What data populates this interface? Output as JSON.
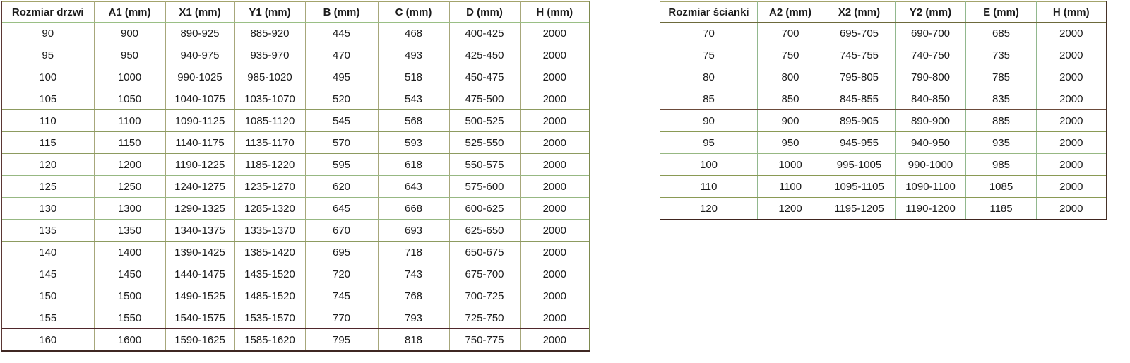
{
  "theme": {
    "border_olive": "#a7a77b",
    "border_green": "#92b88e",
    "border_sage": "#9abf85",
    "border_maroon": "#5c3136",
    "border_dark_bottom": "#3f2723",
    "text_color": "#1b1b1b",
    "background": "#ffffff"
  },
  "door_table": {
    "name": "door-size-table",
    "headers": [
      "Rozmiar drzwi",
      "A1 (mm)",
      "X1 (mm)",
      "Y1 (mm)",
      "B (mm)",
      "C (mm)",
      "D (mm)",
      "H (mm)"
    ],
    "rows": [
      [
        "90",
        "900",
        "890-925",
        "885-920",
        "445",
        "468",
        "400-425",
        "2000"
      ],
      [
        "95",
        "950",
        "940-975",
        "935-970",
        "470",
        "493",
        "425-450",
        "2000"
      ],
      [
        "100",
        "1000",
        "990-1025",
        "985-1020",
        "495",
        "518",
        "450-475",
        "2000"
      ],
      [
        "105",
        "1050",
        "1040-1075",
        "1035-1070",
        "520",
        "543",
        "475-500",
        "2000"
      ],
      [
        "110",
        "1100",
        "1090-1125",
        "1085-1120",
        "545",
        "568",
        "500-525",
        "2000"
      ],
      [
        "115",
        "1150",
        "1140-1175",
        "1135-1170",
        "570",
        "593",
        "525-550",
        "2000"
      ],
      [
        "120",
        "1200",
        "1190-1225",
        "1185-1220",
        "595",
        "618",
        "550-575",
        "2000"
      ],
      [
        "125",
        "1250",
        "1240-1275",
        "1235-1270",
        "620",
        "643",
        "575-600",
        "2000"
      ],
      [
        "130",
        "1300",
        "1290-1325",
        "1285-1320",
        "645",
        "668",
        "600-625",
        "2000"
      ],
      [
        "135",
        "1350",
        "1340-1375",
        "1335-1370",
        "670",
        "693",
        "625-650",
        "2000"
      ],
      [
        "140",
        "1400",
        "1390-1425",
        "1385-1420",
        "695",
        "718",
        "650-675",
        "2000"
      ],
      [
        "145",
        "1450",
        "1440-1475",
        "1435-1520",
        "720",
        "743",
        "675-700",
        "2000"
      ],
      [
        "150",
        "1500",
        "1490-1525",
        "1485-1520",
        "745",
        "768",
        "700-725",
        "2000"
      ],
      [
        "155",
        "1550",
        "1540-1575",
        "1535-1570",
        "770",
        "793",
        "725-750",
        "2000"
      ],
      [
        "160",
        "1600",
        "1590-1625",
        "1585-1620",
        "795",
        "818",
        "750-775",
        "2000"
      ]
    ]
  },
  "wall_table": {
    "name": "wall-panel-size-table",
    "headers": [
      "Rozmiar ścianki",
      "A2 (mm)",
      "X2 (mm)",
      "Y2 (mm)",
      "E (mm)",
      "H (mm)"
    ],
    "rows": [
      [
        "70",
        "700",
        "695-705",
        "690-700",
        "685",
        "2000"
      ],
      [
        "75",
        "750",
        "745-755",
        "740-750",
        "735",
        "2000"
      ],
      [
        "80",
        "800",
        "795-805",
        "790-800",
        "785",
        "2000"
      ],
      [
        "85",
        "850",
        "845-855",
        "840-850",
        "835",
        "2000"
      ],
      [
        "90",
        "900",
        "895-905",
        "890-900",
        "885",
        "2000"
      ],
      [
        "95",
        "950",
        "945-955",
        "940-950",
        "935",
        "2000"
      ],
      [
        "100",
        "1000",
        "995-1005",
        "990-1000",
        "985",
        "2000"
      ],
      [
        "110",
        "1100",
        "1095-1105",
        "1090-1100",
        "1085",
        "2000"
      ],
      [
        "120",
        "1200",
        "1195-1205",
        "1190-1200",
        "1185",
        "2000"
      ]
    ]
  }
}
